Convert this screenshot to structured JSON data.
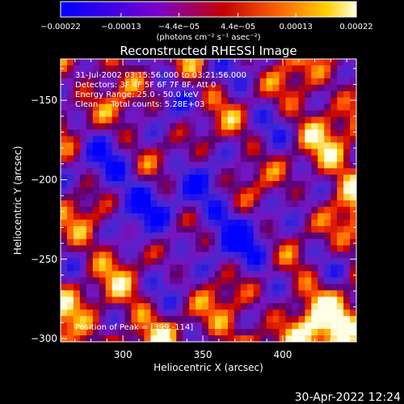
{
  "chart_data": {
    "type": "heatmap",
    "title": "Reconstructed RHESSI Image",
    "xlabel": "Heliocentric X (arcsec)",
    "ylabel": "Heliocentric Y (arcsec)",
    "x_range": [
      261,
      446
    ],
    "y_range": [
      -302,
      -124
    ],
    "x_ticks": [
      300,
      350,
      400
    ],
    "y_ticks": [
      -150,
      -200,
      -250,
      -300
    ],
    "x_tick_labels": [
      "300",
      "350",
      "400"
    ],
    "y_tick_labels": [
      "−150",
      "−200",
      "−250",
      "−300"
    ],
    "colorbar": {
      "range": [
        -0.00022,
        0.00022
      ],
      "tick_values": [
        -0.00022,
        -0.00013,
        -4.4e-05,
        4.4e-05,
        0.00013,
        0.00022
      ],
      "tick_labels": [
        "−0.00022",
        "−0.00013",
        "−4.4e−05",
        "4.4e−05",
        "0.00013",
        "0.00022"
      ],
      "unit_label": "(photons cm⁻² s⁻¹ asec⁻²)"
    },
    "annotations": [
      "31-Jul-2002 03:15:56.000 to 03:21:56.000",
      "Detectors: 3F 4F 5F 6F 7F 8F, Att 0",
      "Energy Range: 25.0 - 50.0 keV",
      "Clean     Total counts: 5.28E+03",
      "Position of Peak = [399,-114]"
    ],
    "peak_position": [
      399,
      -114
    ]
  },
  "footer": {
    "timestamp": "30-Apr-2022 12:24"
  }
}
